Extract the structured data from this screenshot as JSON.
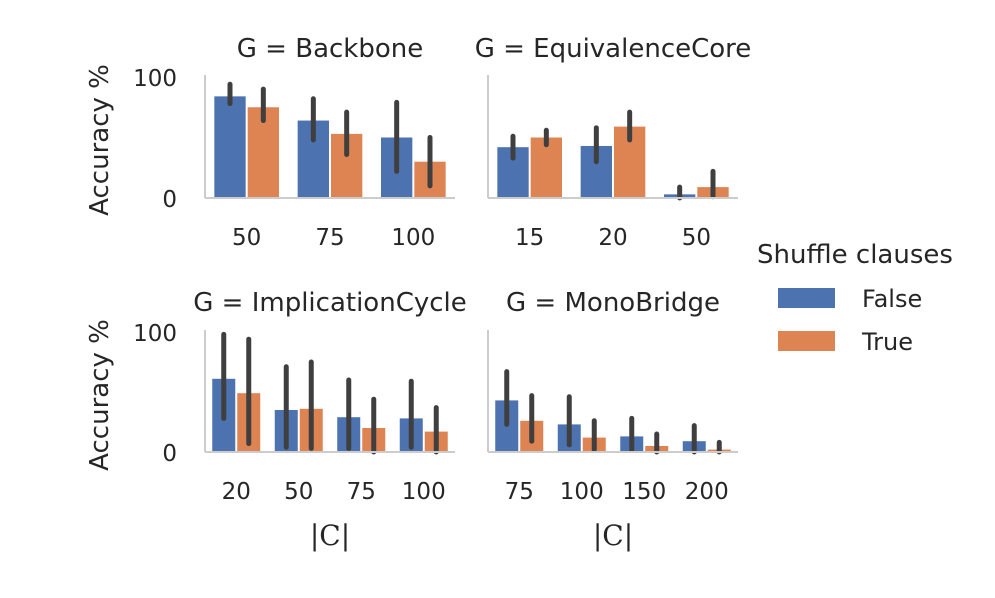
{
  "chart_data": [
    {
      "type": "bar",
      "title": "G = Backbone",
      "xlabel": "",
      "ylabel": "Accuracy %",
      "categories": [
        "50",
        "75",
        "100"
      ],
      "ylim": [
        0,
        100
      ],
      "yticks": [
        "0",
        "100"
      ],
      "series": [
        {
          "name": "False",
          "values": [
            84,
            64,
            50
          ],
          "err_low": [
            78,
            48,
            22
          ],
          "err_high": [
            94,
            82,
            79
          ]
        },
        {
          "name": "True",
          "values": [
            75,
            53,
            30
          ],
          "err_low": [
            64,
            36,
            10
          ],
          "err_high": [
            90,
            71,
            50
          ]
        }
      ]
    },
    {
      "type": "bar",
      "title": "G = EquivalenceCore",
      "xlabel": "",
      "ylabel": "",
      "categories": [
        "15",
        "20",
        "50"
      ],
      "ylim": [
        0,
        100
      ],
      "yticks": [],
      "series": [
        {
          "name": "False",
          "values": [
            42,
            43,
            3
          ],
          "err_low": [
            33,
            30,
            0
          ],
          "err_high": [
            51,
            58,
            9
          ]
        },
        {
          "name": "True",
          "values": [
            50,
            59,
            9
          ],
          "err_low": [
            44,
            48,
            1
          ],
          "err_high": [
            56,
            71,
            22
          ]
        }
      ]
    },
    {
      "type": "bar",
      "title": "G = ImplicationCycle",
      "xlabel": "|C|",
      "ylabel": "Accuracy %",
      "categories": [
        "20",
        "50",
        "75",
        "100"
      ],
      "ylim": [
        0,
        100
      ],
      "yticks": [
        "0",
        "100"
      ],
      "series": [
        {
          "name": "False",
          "values": [
            61,
            35,
            29,
            28
          ],
          "err_low": [
            28,
            4,
            3,
            4
          ],
          "err_high": [
            98,
            71,
            60,
            59
          ]
        },
        {
          "name": "True",
          "values": [
            49,
            36,
            20,
            17
          ],
          "err_low": [
            7,
            3,
            0,
            0
          ],
          "err_high": [
            94,
            75,
            44,
            37
          ]
        }
      ]
    },
    {
      "type": "bar",
      "title": "G = MonoBridge",
      "xlabel": "|C|",
      "ylabel": "",
      "categories": [
        "75",
        "100",
        "150",
        "200"
      ],
      "ylim": [
        0,
        100
      ],
      "yticks": [],
      "series": [
        {
          "name": "False",
          "values": [
            43,
            23,
            13,
            9
          ],
          "err_low": [
            23,
            6,
            2,
            0
          ],
          "err_high": [
            67,
            46,
            28,
            22
          ]
        },
        {
          "name": "True",
          "values": [
            26,
            12,
            5,
            2
          ],
          "err_low": [
            9,
            2,
            0,
            0
          ],
          "err_high": [
            47,
            26,
            15,
            8
          ]
        }
      ]
    }
  ],
  "legend": {
    "title": "Shuffle clauses",
    "entries": [
      {
        "label": "False",
        "color": "#4c72b0"
      },
      {
        "label": "True",
        "color": "#dd8452"
      }
    ]
  },
  "colors": {
    "bar_false": "#4c72b0",
    "bar_true": "#dd8452",
    "error_bar": "#3f3f3f",
    "spine": "#cccccc"
  }
}
